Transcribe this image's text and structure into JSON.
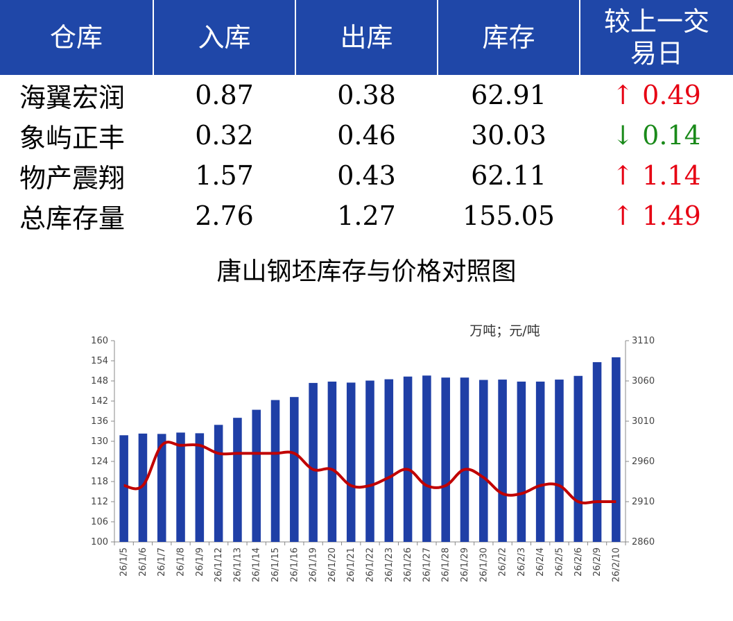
{
  "table": {
    "headers": [
      "仓库",
      "入库",
      "出库",
      "库存",
      "较上一交\n易日"
    ],
    "rows": [
      {
        "name": "海翼宏润",
        "in": "0.87",
        "out": "0.38",
        "stock": "62.91",
        "dir": "up",
        "change": "0.49"
      },
      {
        "name": "象屿正丰",
        "in": "0.32",
        "out": "0.46",
        "stock": "30.03",
        "dir": "down",
        "change": "0.14"
      },
      {
        "name": "物产震翔",
        "in": "1.57",
        "out": "0.43",
        "stock": "62.11",
        "dir": "up",
        "change": "1.14"
      },
      {
        "name": "总库存量",
        "in": "2.76",
        "out": "1.27",
        "stock": "155.05",
        "dir": "up",
        "change": "1.49"
      }
    ]
  },
  "colors": {
    "header_bg": "#1f47a8",
    "bar": "#1f3fa6",
    "line": "#c00000",
    "up": "#e60012",
    "down": "#1a8a1a"
  },
  "chart_data": {
    "type": "bar",
    "title": "唐山钢坯库存与价格对照图",
    "units": "万吨；元/吨",
    "categories": [
      "26/1/5",
      "26/1/6",
      "26/1/7",
      "26/1/8",
      "26/1/9",
      "26/1/12",
      "26/1/13",
      "26/1/14",
      "26/1/15",
      "26/1/16",
      "26/1/19",
      "26/1/20",
      "26/1/21",
      "26/1/22",
      "26/1/23",
      "26/1/26",
      "26/1/27",
      "26/1/28",
      "26/1/29",
      "26/1/30",
      "26/2/2",
      "26/2/3",
      "26/2/4",
      "26/2/5",
      "26/2/6",
      "26/2/9",
      "26/2/10"
    ],
    "series": [
      {
        "type": "bar",
        "axis": "left",
        "values": [
          131.8,
          132.3,
          132.2,
          132.6,
          132.4,
          134.9,
          137.0,
          139.4,
          142.3,
          143.2,
          147.4,
          147.8,
          147.5,
          148.1,
          148.5,
          149.3,
          149.6,
          149.0,
          149.0,
          148.3,
          148.4,
          147.8,
          147.8,
          148.4,
          149.5,
          153.6,
          155.05
        ]
      },
      {
        "type": "line",
        "axis": "right",
        "values": [
          2930,
          2930,
          2980,
          2980,
          2980,
          2970,
          2970,
          2970,
          2970,
          2970,
          2950,
          2950,
          2930,
          2930,
          2940,
          2950,
          2930,
          2930,
          2950,
          2940,
          2920,
          2920,
          2930,
          2930,
          2910,
          2910,
          2910
        ]
      }
    ],
    "ylim_left": [
      100,
      160
    ],
    "yticks_left": [
      100,
      106,
      112,
      118,
      124,
      130,
      136,
      142,
      148,
      154,
      160
    ],
    "ylim_right": [
      2860,
      3110
    ],
    "yticks_right": [
      2860,
      2910,
      2960,
      3010,
      3060,
      3110
    ],
    "grid": false,
    "legend": "none"
  }
}
